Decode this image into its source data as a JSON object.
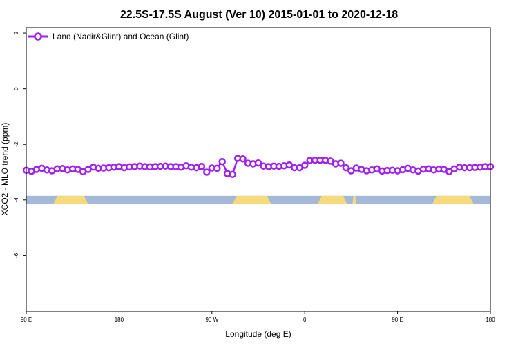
{
  "chart_data": {
    "type": "line",
    "title": "22.5S-17.5S August (Ver 10)   2015-01-01 to 2020-12-18",
    "xlabel": "Longitude (deg E)",
    "ylabel": "XCO2 - MLO trend (ppm)",
    "xlim": [
      90,
      450
    ],
    "ylim": [
      -8,
      2.2
    ],
    "x_ticks": [
      {
        "value": 90,
        "label": "90 E"
      },
      {
        "value": 180,
        "label": "180"
      },
      {
        "value": 270,
        "label": "90 W"
      },
      {
        "value": 360,
        "label": "0"
      },
      {
        "value": 450,
        "label": "90 E"
      },
      {
        "value": 540,
        "label": "180"
      }
    ],
    "x_tick_positions": [
      90,
      162,
      234,
      306,
      378,
      450
    ],
    "y_ticks": [
      {
        "value": 2,
        "label": "2"
      },
      {
        "value": 0,
        "label": "0"
      },
      {
        "value": -2,
        "label": "-2"
      },
      {
        "value": -4,
        "label": "-4"
      },
      {
        "value": -6,
        "label": "-6"
      }
    ],
    "legend_position": "top-left",
    "series": [
      {
        "name": "Land (Nadir&Glint) and Ocean (Glint)",
        "color": "#a020f0",
        "marker": "open-circle",
        "x": [
          90,
          94,
          98,
          102,
          106,
          110,
          114,
          118,
          122,
          126,
          130,
          134,
          138,
          142,
          146,
          150,
          154,
          158,
          162,
          166,
          170,
          174,
          178,
          182,
          186,
          190,
          194,
          198,
          202,
          206,
          210,
          214,
          218,
          222,
          226,
          230,
          234,
          238,
          242,
          246,
          250,
          254,
          258,
          262,
          266,
          270,
          274,
          278,
          282,
          286,
          290,
          294,
          298,
          302,
          306,
          310,
          314,
          318,
          322,
          326,
          330,
          334,
          338,
          342,
          346,
          350,
          354,
          358,
          362,
          366,
          370,
          374,
          378,
          382,
          386,
          390,
          394,
          398,
          402,
          406,
          410,
          414,
          418,
          422,
          426,
          430,
          434,
          438,
          442,
          446,
          450
        ],
        "y": [
          -2.93,
          -2.97,
          -2.9,
          -2.86,
          -2.92,
          -2.95,
          -2.88,
          -2.87,
          -2.92,
          -2.88,
          -2.9,
          -2.98,
          -2.9,
          -2.82,
          -2.86,
          -2.85,
          -2.84,
          -2.82,
          -2.8,
          -2.84,
          -2.81,
          -2.8,
          -2.78,
          -2.8,
          -2.81,
          -2.8,
          -2.79,
          -2.78,
          -2.8,
          -2.8,
          -2.82,
          -2.77,
          -2.82,
          -2.84,
          -2.79,
          -3.0,
          -2.85,
          -2.86,
          -2.62,
          -3.05,
          -3.08,
          -2.5,
          -2.52,
          -2.68,
          -2.7,
          -2.67,
          -2.78,
          -2.8,
          -2.78,
          -2.79,
          -2.77,
          -2.74,
          -2.84,
          -2.84,
          -2.75,
          -2.58,
          -2.57,
          -2.57,
          -2.57,
          -2.6,
          -2.7,
          -2.68,
          -2.84,
          -2.95,
          -2.85,
          -2.9,
          -2.95,
          -2.92,
          -2.88,
          -2.96,
          -2.94,
          -2.93,
          -2.95,
          -2.91,
          -2.86,
          -2.92,
          -2.96,
          -2.89,
          -2.88,
          -2.92,
          -2.89,
          -2.9,
          -2.98,
          -2.88,
          -2.82,
          -2.84,
          -2.84,
          -2.83,
          -2.82,
          -2.8,
          -2.8
        ]
      }
    ],
    "land_ocean_strip": {
      "y_center": -4.0,
      "ocean_color": "#a4b8d8",
      "land_color": "#f7da7c",
      "land_segments_lon": [
        [
          111,
          138
        ],
        [
          250,
          280
        ],
        [
          316,
          339
        ],
        [
          343,
          346
        ],
        [
          405,
          437
        ]
      ]
    }
  }
}
